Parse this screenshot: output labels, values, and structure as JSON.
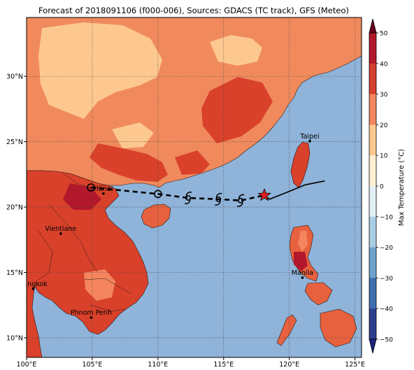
{
  "title": "Forecast of 2018091106 (f000-006), Sources: GDACS (TC track), GFS (Meteo)",
  "map": {
    "lon_range": [
      100,
      125.5
    ],
    "lat_range": [
      8.5,
      34.5
    ],
    "x_ticks": [
      "100°E",
      "105°E",
      "110°E",
      "115°E",
      "120°E",
      "125°E"
    ],
    "x_tick_values": [
      100,
      105,
      110,
      115,
      120,
      125
    ],
    "y_ticks": [
      "10°N",
      "15°N",
      "20°N",
      "25°N",
      "30°N"
    ],
    "y_tick_values": [
      10,
      15,
      20,
      25,
      30
    ],
    "ocean_color": "#8fb3d9",
    "cities": [
      {
        "name": "Hanoi",
        "lon": 105.85,
        "lat": 21.03
      },
      {
        "name": "Vientiane",
        "lon": 102.6,
        "lat": 17.97
      },
      {
        "name": "Bangkok",
        "lon": 100.5,
        "lat": 13.75
      },
      {
        "name": "Phnom Penh",
        "lon": 104.92,
        "lat": 11.55
      },
      {
        "name": "Manila",
        "lon": 121.0,
        "lat": 14.6
      },
      {
        "name": "Taipei",
        "lon": 121.56,
        "lat": 25.04
      }
    ]
  },
  "track": {
    "forecast_points": [
      {
        "lon": 104.9,
        "lat": 21.5,
        "symbol": "circle"
      },
      {
        "lon": 110.0,
        "lat": 21.0,
        "symbol": "circle"
      },
      {
        "lon": 112.3,
        "lat": 20.7,
        "symbol": "cyclone"
      },
      {
        "lon": 114.6,
        "lat": 20.6,
        "symbol": "cyclone"
      },
      {
        "lon": 116.3,
        "lat": 20.5,
        "symbol": "cyclone"
      }
    ],
    "current": {
      "lon": 118.1,
      "lat": 20.9,
      "symbol": "star"
    },
    "past": [
      [
        118.5,
        20.6
      ],
      [
        120.0,
        21.2
      ],
      [
        121.2,
        21.7
      ],
      [
        122.7,
        22.0
      ]
    ],
    "star_color": "#e02020"
  },
  "colorbar": {
    "label": "Max Temperature (°C)",
    "ticks": [
      "50",
      "40",
      "30",
      "20",
      "10",
      "0",
      "−10",
      "−20",
      "−30",
      "−40",
      "−50"
    ],
    "colors": [
      "#67001f",
      "#b2182b",
      "#d6402f",
      "#f4855e",
      "#fdc88f",
      "#fff0d2",
      "#e3f0f6",
      "#aacfe5",
      "#6ba3cc",
      "#3d6eb0",
      "#2c3e8f",
      "#1a237e"
    ]
  }
}
